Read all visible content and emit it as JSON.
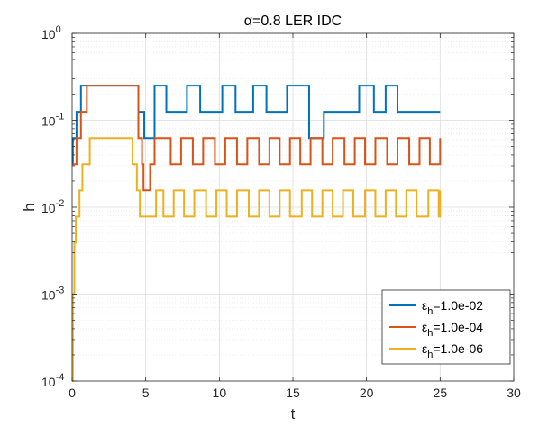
{
  "chart_data": {
    "type": "line",
    "title": "α=0.8   LER IDC",
    "xlabel": "t",
    "ylabel": "h",
    "xlim": [
      0,
      30
    ],
    "ylim": [
      0.0001,
      1
    ],
    "yscale": "log",
    "xticks": [
      "0",
      "5",
      "10",
      "15",
      "20",
      "25",
      "30"
    ],
    "yticks": [
      {
        "base": "10",
        "exp": "-4"
      },
      {
        "base": "10",
        "exp": "-3"
      },
      {
        "base": "10",
        "exp": "-2"
      },
      {
        "base": "10",
        "exp": "-1"
      },
      {
        "base": "10",
        "exp": "0"
      }
    ],
    "grid": true,
    "legend_position": "bottom-right",
    "series": [
      {
        "name": "ε_h=1.0e-02",
        "name_parts": {
          "symbol": "ε",
          "sub": "h",
          "rest": "=1.0e-02"
        },
        "color": "#0072BD",
        "drawstyle": "steps-post",
        "points": [
          [
            0,
            0.03125
          ],
          [
            0.05,
            0.0625
          ],
          [
            0.3,
            0.125
          ],
          [
            0.6,
            0.25
          ],
          [
            4.5,
            0.125
          ],
          [
            4.9,
            0.0625
          ],
          [
            5.6,
            0.25
          ],
          [
            6.4,
            0.125
          ],
          [
            7.8,
            0.25
          ],
          [
            8.7,
            0.125
          ],
          [
            10.2,
            0.25
          ],
          [
            11.1,
            0.125
          ],
          [
            12.3,
            0.25
          ],
          [
            13.2,
            0.125
          ],
          [
            14.6,
            0.25
          ],
          [
            16.1,
            0.0625
          ],
          [
            17.1,
            0.125
          ],
          [
            19.5,
            0.25
          ],
          [
            20.5,
            0.125
          ],
          [
            21.3,
            0.25
          ],
          [
            22.1,
            0.125
          ],
          [
            25,
            0.125
          ]
        ]
      },
      {
        "name": "ε_h=1.0e-04",
        "name_parts": {
          "symbol": "ε",
          "sub": "h",
          "rest": "=1.0e-04"
        },
        "color": "#D95319",
        "drawstyle": "steps-post",
        "points": [
          [
            0,
            0.03125
          ],
          [
            0.3,
            0.0625
          ],
          [
            0.6,
            0.125
          ],
          [
            1.0,
            0.25
          ],
          [
            4.5,
            0.0625
          ],
          [
            4.75,
            0.03125
          ],
          [
            4.85,
            0.015625
          ],
          [
            5.3,
            0.03125
          ],
          [
            5.6,
            0.0625
          ],
          [
            6.7,
            0.03125
          ],
          [
            7.4,
            0.0625
          ],
          [
            8.2,
            0.03125
          ],
          [
            8.9,
            0.0625
          ],
          [
            9.7,
            0.03125
          ],
          [
            10.4,
            0.0625
          ],
          [
            11.2,
            0.03125
          ],
          [
            11.9,
            0.0625
          ],
          [
            12.7,
            0.03125
          ],
          [
            13.4,
            0.0625
          ],
          [
            14.1,
            0.03125
          ],
          [
            14.8,
            0.0625
          ],
          [
            15.5,
            0.03125
          ],
          [
            16.2,
            0.0625
          ],
          [
            17.0,
            0.03125
          ],
          [
            17.7,
            0.0625
          ],
          [
            18.5,
            0.03125
          ],
          [
            19.2,
            0.0625
          ],
          [
            19.9,
            0.03125
          ],
          [
            20.6,
            0.0625
          ],
          [
            21.4,
            0.03125
          ],
          [
            22.1,
            0.0625
          ],
          [
            22.9,
            0.03125
          ],
          [
            23.6,
            0.0625
          ],
          [
            24.3,
            0.03125
          ],
          [
            25,
            0.0625
          ]
        ]
      },
      {
        "name": "ε_h=1.0e-06",
        "name_parts": {
          "symbol": "ε",
          "sub": "h",
          "rest": "=1.0e-06"
        },
        "color": "#EDB120",
        "drawstyle": "steps-post",
        "points": [
          [
            0,
            0.0001
          ],
          [
            0.05,
            0.001
          ],
          [
            0.15,
            0.0039
          ],
          [
            0.25,
            0.0078
          ],
          [
            0.5,
            0.0156
          ],
          [
            0.7,
            0.03125
          ],
          [
            1.2,
            0.0625
          ],
          [
            4.1,
            0.03125
          ],
          [
            4.4,
            0.0156
          ],
          [
            4.6,
            0.0078
          ],
          [
            5.7,
            0.0156
          ],
          [
            6.2,
            0.0078
          ],
          [
            6.9,
            0.0156
          ],
          [
            7.6,
            0.0078
          ],
          [
            8.3,
            0.0156
          ],
          [
            9.1,
            0.0078
          ],
          [
            9.8,
            0.0156
          ],
          [
            10.5,
            0.0078
          ],
          [
            11.2,
            0.0156
          ],
          [
            12.0,
            0.0078
          ],
          [
            12.7,
            0.0156
          ],
          [
            13.4,
            0.0078
          ],
          [
            14.1,
            0.0156
          ],
          [
            14.8,
            0.0078
          ],
          [
            15.6,
            0.0156
          ],
          [
            16.3,
            0.0078
          ],
          [
            17.0,
            0.0156
          ],
          [
            17.7,
            0.0078
          ],
          [
            18.4,
            0.0156
          ],
          [
            19.1,
            0.0078
          ],
          [
            19.9,
            0.0156
          ],
          [
            20.6,
            0.0078
          ],
          [
            21.3,
            0.0156
          ],
          [
            22.0,
            0.0078
          ],
          [
            22.7,
            0.0156
          ],
          [
            23.4,
            0.0078
          ],
          [
            24.2,
            0.0156
          ],
          [
            24.9,
            0.0078
          ],
          [
            25,
            0.0156
          ]
        ]
      }
    ]
  }
}
